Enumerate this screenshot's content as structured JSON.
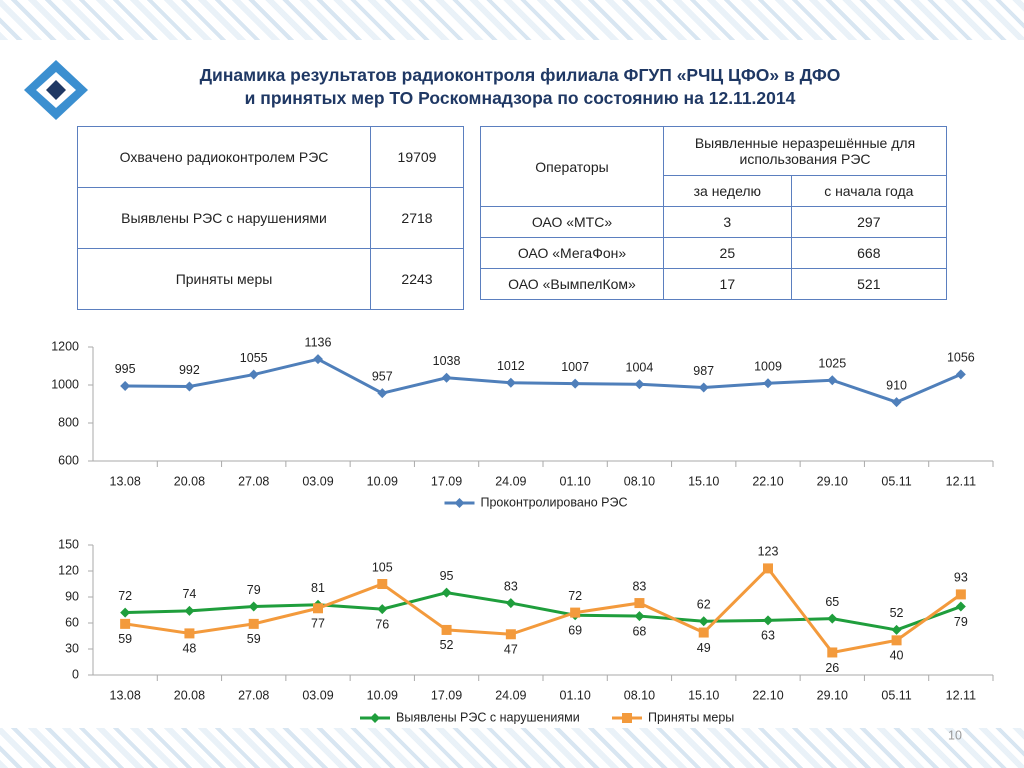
{
  "header": {
    "title": [
      "Динамика результатов радиоконтроля филиала ФГУП «РЧЦ ЦФО» в ДФО",
      "и принятых мер ТО Роскомнадзора по состоянию на 12.11.2014"
    ]
  },
  "summary_table": {
    "rows": [
      [
        "Охвачено радиоконтролем РЭС",
        19709
      ],
      [
        "Выявлены РЭС с нарушениями",
        2718
      ],
      [
        "Приняты меры",
        2243
      ]
    ]
  },
  "operators_table": {
    "header": [
      "Операторы",
      "Выявленные неразрешённые для использования РЭС",
      "за неделю",
      "с начала года"
    ],
    "rows": [
      [
        "ОАО «МТС»",
        3,
        297
      ],
      [
        "ОАО «МегаФон»",
        25,
        668
      ],
      [
        "ОАО «ВымпелКом»",
        17,
        521
      ]
    ]
  },
  "chart_data": [
    {
      "type": "line",
      "categories": [
        "13.08",
        "20.08",
        "27.08",
        "03.09",
        "10.09",
        "17.09",
        "24.09",
        "01.10",
        "08.10",
        "15.10",
        "22.10",
        "29.10",
        "05.11",
        "12.11"
      ],
      "series": [
        {
          "name": "Проконтролировано РЭС",
          "color": "#4f7fba",
          "marker": "diamond",
          "values": [
            995,
            992,
            1055,
            1136,
            957,
            1038,
            1012,
            1007,
            1004,
            987,
            1009,
            1025,
            910,
            1056
          ]
        }
      ],
      "ylim": [
        600,
        1200
      ],
      "yticks": [
        600,
        800,
        1000,
        1200
      ],
      "grid": false,
      "legend": "bottom"
    },
    {
      "type": "line",
      "categories": [
        "13.08",
        "20.08",
        "27.08",
        "03.09",
        "10.09",
        "17.09",
        "24.09",
        "01.10",
        "08.10",
        "15.10",
        "22.10",
        "29.10",
        "05.11",
        "12.11"
      ],
      "series": [
        {
          "name": "Выявлены РЭС с нарушениями",
          "color": "#1f9e3c",
          "marker": "diamond",
          "values": [
            72,
            74,
            79,
            81,
            76,
            95,
            83,
            69,
            68,
            62,
            63,
            65,
            52,
            79
          ]
        },
        {
          "name": "Приняты меры",
          "color": "#f39a3c",
          "marker": "square",
          "values": [
            59,
            48,
            59,
            77,
            105,
            52,
            47,
            72,
            83,
            49,
            123,
            26,
            40,
            93
          ]
        }
      ],
      "ylim": [
        0,
        150
      ],
      "yticks": [
        0,
        30,
        60,
        90,
        120,
        150
      ],
      "grid": false,
      "legend": "bottom"
    }
  ],
  "footer": {
    "page_number": 10
  }
}
